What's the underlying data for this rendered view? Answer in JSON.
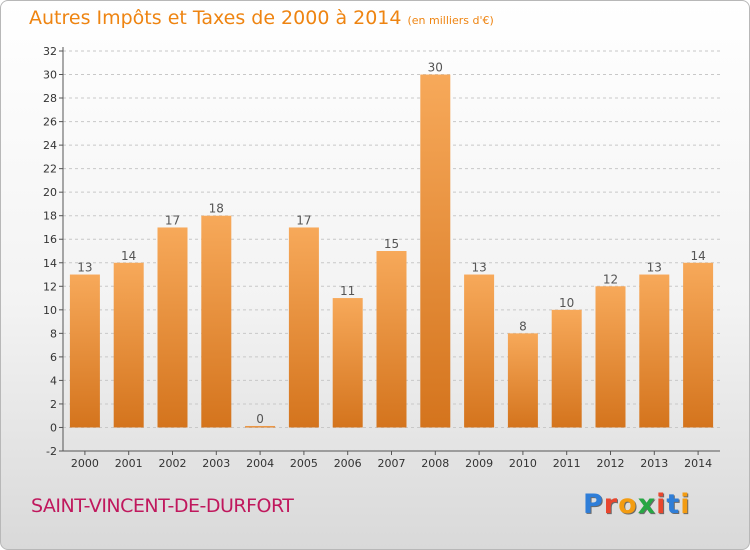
{
  "title": "Autres Impôts et Taxes de 2000 à 2014",
  "subtitle": "(en milliers d'€)",
  "commune": "SAINT-VINCENT-DE-DURFORT",
  "logo": {
    "text": "Proxiti",
    "letters": [
      {
        "char": "P",
        "color": "#2f7ed8"
      },
      {
        "char": "r",
        "color": "#e8462e"
      },
      {
        "char": "o",
        "color": "#f39c12"
      },
      {
        "char": "x",
        "color": "#27a744"
      },
      {
        "char": "i",
        "color": "#e8462e"
      },
      {
        "char": "t",
        "color": "#2f7ed8"
      },
      {
        "char": "i",
        "color": "#f39c12"
      }
    ]
  },
  "colors": {
    "accent": "#ee8411",
    "bar_light": "#f7a95a",
    "bar_dark": "#d4741d",
    "commune": "#c0185d"
  },
  "chart_data": {
    "type": "bar",
    "categories": [
      "2000",
      "2001",
      "2002",
      "2003",
      "2004",
      "2005",
      "2006",
      "2007",
      "2008",
      "2009",
      "2010",
      "2011",
      "2012",
      "2013",
      "2014"
    ],
    "values": [
      13,
      14,
      17,
      18,
      0,
      17,
      11,
      15,
      30,
      13,
      8,
      10,
      12,
      13,
      14
    ],
    "ylim": [
      -2,
      32
    ],
    "yticks": [
      -2,
      0,
      2,
      4,
      6,
      8,
      10,
      12,
      14,
      16,
      18,
      20,
      22,
      24,
      26,
      28,
      30,
      32
    ],
    "grid": "horizontal dashed",
    "xlabel": "",
    "ylabel": ""
  }
}
